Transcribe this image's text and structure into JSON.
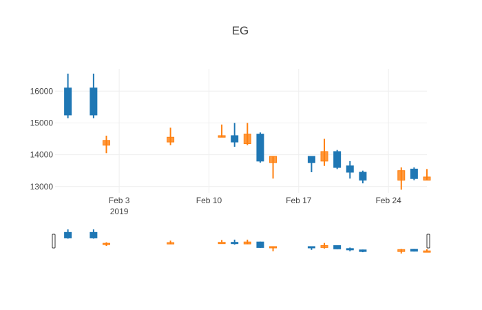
{
  "chart_data": {
    "type": "candlestick",
    "title": "EG",
    "xlabel": "",
    "ylabel": "",
    "ylim": [
      12800,
      16700
    ],
    "xrange": [
      "2019-01-29",
      "2019-02-27"
    ],
    "y_ticks": [
      13000,
      14000,
      15000,
      16000
    ],
    "x_ticks": [
      {
        "date": "2019-02-03",
        "label": "Feb 3",
        "sublabel": "2019"
      },
      {
        "date": "2019-02-10",
        "label": "Feb 10",
        "sublabel": ""
      },
      {
        "date": "2019-02-17",
        "label": "Feb 17",
        "sublabel": ""
      },
      {
        "date": "2019-02-24",
        "label": "Feb 24",
        "sublabel": ""
      }
    ],
    "increasing_color": "#1f77b4",
    "decreasing_color": "#ff7f0e",
    "grid": true,
    "rangeslider": true,
    "series": [
      {
        "candles": [
          {
            "date": "2019-01-30",
            "open": 15250,
            "high": 16550,
            "low": 15150,
            "close": 16100
          },
          {
            "date": "2019-02-01",
            "open": 15250,
            "high": 16550,
            "low": 15150,
            "close": 16100
          },
          {
            "date": "2019-02-02",
            "open": 14450,
            "high": 14600,
            "low": 14050,
            "close": 14300
          },
          {
            "date": "2019-02-07",
            "open": 14550,
            "high": 14850,
            "low": 14300,
            "close": 14400
          },
          {
            "date": "2019-02-11",
            "open": 14600,
            "high": 14950,
            "low": 14550,
            "close": 14550
          },
          {
            "date": "2019-02-12",
            "open": 14400,
            "high": 15000,
            "low": 14250,
            "close": 14600
          },
          {
            "date": "2019-02-13",
            "open": 14650,
            "high": 15000,
            "low": 14300,
            "close": 14350
          },
          {
            "date": "2019-02-14",
            "open": 13800,
            "high": 14700,
            "low": 13750,
            "close": 14650
          },
          {
            "date": "2019-02-15",
            "open": 13950,
            "high": 13950,
            "low": 13250,
            "close": 13750
          },
          {
            "date": "2019-02-18",
            "open": 13750,
            "high": 13950,
            "low": 13450,
            "close": 13950
          },
          {
            "date": "2019-02-19",
            "open": 14100,
            "high": 14500,
            "low": 13650,
            "close": 13800
          },
          {
            "date": "2019-02-20",
            "open": 13600,
            "high": 14150,
            "low": 13550,
            "close": 14100
          },
          {
            "date": "2019-02-21",
            "open": 13450,
            "high": 13800,
            "low": 13250,
            "close": 13650
          },
          {
            "date": "2019-02-22",
            "open": 13200,
            "high": 13500,
            "low": 13100,
            "close": 13450
          },
          {
            "date": "2019-02-25",
            "open": 13500,
            "high": 13600,
            "low": 12900,
            "close": 13200
          },
          {
            "date": "2019-02-26",
            "open": 13250,
            "high": 13600,
            "low": 13200,
            "close": 13550
          },
          {
            "date": "2019-02-27",
            "open": 13300,
            "high": 13550,
            "low": 13200,
            "close": 13200
          }
        ]
      }
    ]
  }
}
